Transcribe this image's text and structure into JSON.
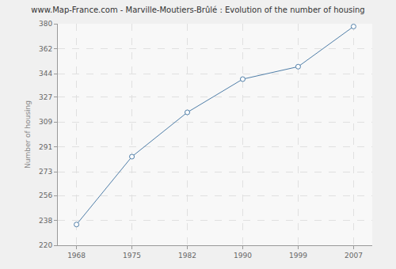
{
  "chart_data": {
    "type": "line",
    "title": "www.Map-France.com - Marville-Moutiers-Brûlé : Evolution of the number of housing",
    "y_label": "Number of housing",
    "categories": [
      "1968",
      "1975",
      "1982",
      "1990",
      "1999",
      "2007"
    ],
    "values": [
      235,
      284,
      316,
      340,
      349,
      378
    ],
    "color": "#4f7ea8",
    "marker": "circle",
    "ylim": [
      220,
      380
    ],
    "yticks": [
      220,
      238,
      256,
      273,
      291,
      309,
      327,
      344,
      362,
      380
    ],
    "grid": true
  }
}
